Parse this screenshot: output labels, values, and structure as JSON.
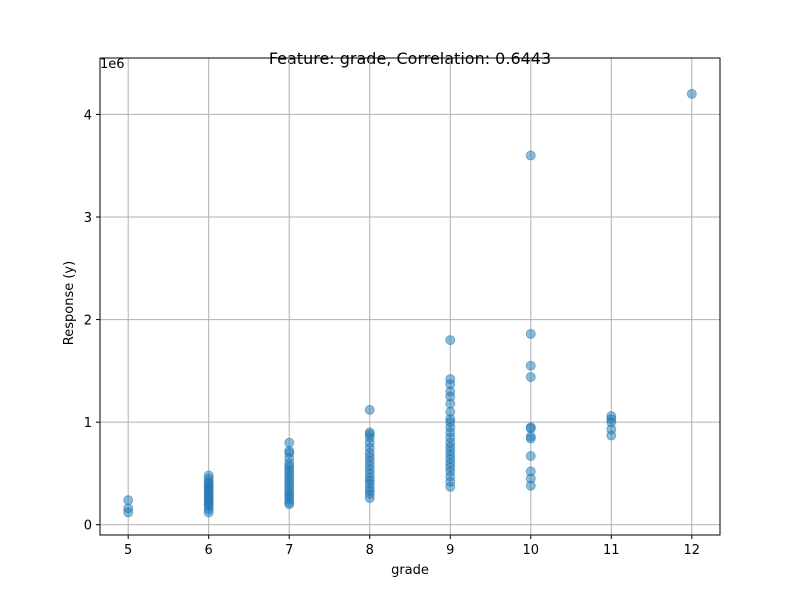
{
  "chart_data": {
    "type": "scatter",
    "title": "Feature: grade, Correlation: 0.6443",
    "xlabel": "grade",
    "ylabel": "Response (y)",
    "y_offset_label": "1e6",
    "xlim": [
      4.65,
      12.35
    ],
    "ylim": [
      -0.1,
      4.55
    ],
    "xticks": [
      5,
      6,
      7,
      8,
      9,
      10,
      11,
      12
    ],
    "yticks": [
      0,
      1,
      2,
      3,
      4
    ],
    "grid": true,
    "series": [
      {
        "color": "#1f77b4",
        "x": [
          5,
          5,
          5,
          6,
          6,
          6,
          6,
          6,
          6,
          6,
          6,
          6,
          6,
          6,
          6,
          6,
          6,
          6,
          6,
          6,
          7,
          7,
          7,
          7,
          7,
          7,
          7,
          7,
          7,
          7,
          7,
          7,
          7,
          7,
          7,
          7,
          7,
          7,
          7,
          8,
          8,
          8,
          8,
          8,
          8,
          8,
          8,
          8,
          8,
          8,
          8,
          8,
          8,
          8,
          8,
          8,
          8,
          8,
          9,
          9,
          9,
          9,
          9,
          9,
          9,
          9,
          9,
          9,
          9,
          9,
          9,
          9,
          9,
          9,
          9,
          9,
          9,
          9,
          9,
          9,
          9,
          10,
          10,
          10,
          10,
          10,
          10,
          10,
          10,
          10,
          10,
          10,
          10,
          11,
          11,
          11,
          11,
          11,
          12
        ],
        "values": [
          0.24,
          0.16,
          0.12,
          0.12,
          0.15,
          0.18,
          0.2,
          0.22,
          0.24,
          0.26,
          0.28,
          0.3,
          0.32,
          0.34,
          0.36,
          0.38,
          0.4,
          0.42,
          0.45,
          0.48,
          0.2,
          0.22,
          0.25,
          0.28,
          0.3,
          0.33,
          0.36,
          0.39,
          0.42,
          0.45,
          0.48,
          0.51,
          0.54,
          0.57,
          0.6,
          0.65,
          0.7,
          0.72,
          0.8,
          0.26,
          0.3,
          0.33,
          0.36,
          0.4,
          0.43,
          0.46,
          0.5,
          0.54,
          0.58,
          0.62,
          0.66,
          0.7,
          0.75,
          0.8,
          0.85,
          0.88,
          0.9,
          1.12,
          0.37,
          0.42,
          0.47,
          0.52,
          0.56,
          0.6,
          0.64,
          0.68,
          0.72,
          0.76,
          0.8,
          0.85,
          0.9,
          0.95,
          1.0,
          1.03,
          1.1,
          1.18,
          1.25,
          1.3,
          1.37,
          1.42,
          1.8,
          0.38,
          0.45,
          0.52,
          0.67,
          0.84,
          0.86,
          0.94,
          0.95,
          1.44,
          1.55,
          1.86,
          3.6,
          0.87,
          0.93,
          1.0,
          1.03,
          1.06,
          4.2
        ]
      }
    ]
  }
}
